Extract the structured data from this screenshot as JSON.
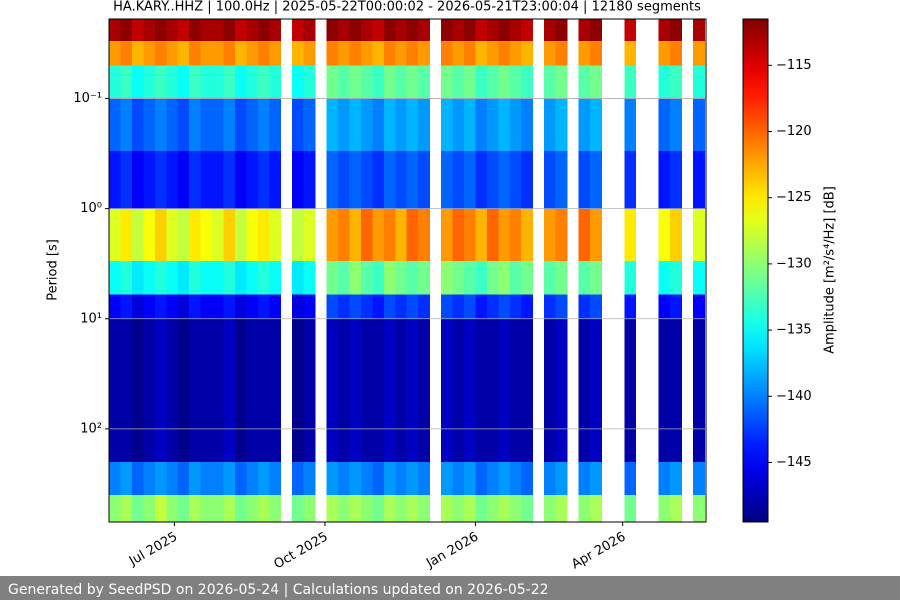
{
  "chart_data": {
    "type": "heatmap",
    "title": "HA.KARY..HHZ | 100.0Hz | 2025-05-22T00:00:02 - 2026-05-21T23:00:04 | 12180 segments",
    "ylabel": "Period [s]",
    "yscale": "log",
    "y_inverted": true,
    "grid": true,
    "xlim": [
      "2025-05-22T00:00:02",
      "2026-05-21T23:00:04"
    ],
    "xticks": [
      {
        "value": "2025-07",
        "label": "Jul 2025"
      },
      {
        "value": "2025-10",
        "label": "Oct 2025"
      },
      {
        "value": "2026-01",
        "label": "Jan 2026"
      },
      {
        "value": "2026-04",
        "label": "Apr 2026"
      }
    ],
    "ylim": [
      0.019,
      700
    ],
    "yticks": [
      {
        "value": 0.1,
        "label": "10⁻¹"
      },
      {
        "value": 1,
        "label": "10⁰"
      },
      {
        "value": 10,
        "label": "10¹"
      },
      {
        "value": 100,
        "label": "10²"
      }
    ],
    "x": [
      "2025-05-22",
      "2025-05-29",
      "2025-06-05",
      "2025-06-12",
      "2025-06-19",
      "2025-06-26",
      "2025-07-03",
      "2025-07-10",
      "2025-07-17",
      "2025-07-24",
      "2025-07-31",
      "2025-08-07",
      "2025-08-14",
      "2025-08-21",
      "2025-08-28",
      "2025-09-04",
      "2025-09-11",
      "2025-09-18",
      "2025-09-25",
      "2025-10-02",
      "2025-10-09",
      "2025-10-16",
      "2025-10-23",
      "2025-10-30",
      "2025-11-06",
      "2025-11-13",
      "2025-11-20",
      "2025-11-27",
      "2025-12-04",
      "2025-12-11",
      "2025-12-18",
      "2025-12-25",
      "2026-01-01",
      "2026-01-08",
      "2026-01-15",
      "2026-01-22",
      "2026-01-29",
      "2026-02-05",
      "2026-02-12",
      "2026-02-19",
      "2026-02-26",
      "2026-03-05",
      "2026-03-12",
      "2026-03-19",
      "2026-03-26",
      "2026-04-02",
      "2026-04-09",
      "2026-04-16",
      "2026-04-23",
      "2026-04-30",
      "2026-05-07",
      "2026-05-14",
      "2026-05-21"
    ],
    "periods": [
      0.019,
      0.03,
      0.05,
      0.1,
      0.3,
      1,
      3,
      6,
      10,
      200,
      400,
      700
    ],
    "values": [
      [
        -113,
        -112,
        -114,
        -113,
        -112,
        -113,
        -114,
        -112,
        -113,
        -113,
        -112,
        -114,
        -113,
        -112,
        -113,
        null,
        -114,
        -113,
        null,
        -112,
        -113,
        -112,
        -113,
        -114,
        -112,
        -113,
        -112,
        -113,
        null,
        -112,
        -113,
        -112,
        -114,
        -113,
        -112,
        -113,
        -114,
        null,
        -113,
        -112,
        null,
        -113,
        -112,
        null,
        null,
        -114,
        null,
        null,
        -113,
        -112,
        null,
        -113
      ],
      [
        -122,
        -121,
        -123,
        -122,
        -121,
        -122,
        -123,
        -121,
        -122,
        -122,
        -121,
        -123,
        -122,
        -121,
        -122,
        null,
        -123,
        -122,
        null,
        -121,
        -122,
        -121,
        -122,
        -123,
        -121,
        -122,
        -121,
        -122,
        null,
        -121,
        -122,
        -121,
        -123,
        -122,
        -121,
        -122,
        -123,
        null,
        -122,
        -121,
        null,
        -122,
        -121,
        null,
        null,
        -123,
        null,
        null,
        -122,
        -121,
        null,
        -122
      ],
      [
        -134,
        -133,
        -135,
        -134,
        -133,
        -134,
        -135,
        -133,
        -134,
        -134,
        -133,
        -135,
        -134,
        -133,
        -134,
        null,
        -135,
        -134,
        null,
        -131,
        -132,
        -131,
        -132,
        -133,
        -131,
        -132,
        -131,
        -132,
        null,
        -131,
        -132,
        -131,
        -133,
        -132,
        -131,
        -132,
        -133,
        null,
        -132,
        -131,
        null,
        -132,
        -131,
        null,
        null,
        -133,
        null,
        null,
        -134,
        -133,
        null,
        -134
      ],
      [
        -141,
        -140,
        -142,
        -141,
        -140,
        -141,
        -142,
        -140,
        -141,
        -141,
        -140,
        -142,
        -141,
        -140,
        -141,
        null,
        -142,
        -141,
        null,
        -138,
        -139,
        -138,
        -139,
        -140,
        -138,
        -139,
        -138,
        -139,
        null,
        -138,
        -139,
        -138,
        -140,
        -139,
        -138,
        -139,
        -140,
        null,
        -139,
        -138,
        null,
        -139,
        -138,
        null,
        null,
        -140,
        null,
        null,
        -141,
        -140,
        null,
        -141
      ],
      [
        -144,
        -143,
        -145,
        -144,
        -143,
        -144,
        -145,
        -143,
        -144,
        -144,
        -143,
        -145,
        -144,
        -143,
        -144,
        null,
        -145,
        -144,
        null,
        -141,
        -142,
        -141,
        -142,
        -143,
        -141,
        -142,
        -141,
        -142,
        null,
        -141,
        -142,
        -141,
        -143,
        -142,
        -141,
        -142,
        -143,
        null,
        -142,
        -141,
        null,
        -142,
        -141,
        null,
        null,
        -143,
        null,
        null,
        -144,
        -143,
        null,
        -144
      ],
      [
        -127,
        -125,
        -128,
        -126,
        -124,
        -127,
        -128,
        -125,
        -126,
        -127,
        -124,
        -128,
        -126,
        -125,
        -127,
        null,
        -128,
        -127,
        null,
        -122,
        -121,
        -123,
        -120,
        -122,
        -121,
        -123,
        -120,
        -121,
        null,
        -122,
        -120,
        -121,
        -123,
        -120,
        -122,
        -121,
        -123,
        null,
        -122,
        -121,
        null,
        -120,
        -122,
        null,
        null,
        -125,
        null,
        null,
        -126,
        -124,
        null,
        -127
      ],
      [
        -135,
        -134,
        -136,
        -135,
        -134,
        -135,
        -136,
        -134,
        -135,
        -135,
        -134,
        -136,
        -135,
        -134,
        -135,
        null,
        -136,
        -135,
        null,
        -131,
        -132,
        -130,
        -132,
        -133,
        -130,
        -131,
        -132,
        -131,
        null,
        -130,
        -131,
        -132,
        -133,
        -131,
        -130,
        -132,
        -131,
        null,
        -132,
        -131,
        null,
        -132,
        -131,
        null,
        null,
        -134,
        null,
        null,
        -135,
        -134,
        null,
        -135
      ],
      [
        -145,
        -144,
        -146,
        -145,
        -144,
        -145,
        -146,
        -144,
        -145,
        -145,
        -144,
        -146,
        -145,
        -144,
        -145,
        null,
        -146,
        -145,
        null,
        -142,
        -143,
        -142,
        -143,
        -144,
        -142,
        -143,
        -142,
        -143,
        null,
        -142,
        -143,
        -142,
        -144,
        -143,
        -142,
        -143,
        -144,
        null,
        -143,
        -142,
        null,
        -143,
        -142,
        null,
        null,
        -144,
        null,
        null,
        -145,
        -144,
        null,
        -145
      ],
      [
        -148,
        -148,
        -149,
        -148,
        -147,
        -148,
        -149,
        -148,
        -148,
        -148,
        -147,
        -149,
        -148,
        -148,
        -148,
        null,
        -149,
        -148,
        null,
        -147,
        -148,
        -147,
        -148,
        -148,
        -147,
        -148,
        -147,
        -148,
        null,
        -147,
        -148,
        -147,
        -148,
        -148,
        -147,
        -148,
        -148,
        null,
        -148,
        -147,
        null,
        -148,
        -147,
        null,
        null,
        -148,
        null,
        null,
        -148,
        -148,
        null,
        -148
      ],
      [
        -140,
        -139,
        -141,
        -140,
        -139,
        -140,
        -141,
        -139,
        -140,
        -140,
        -139,
        -141,
        -140,
        -139,
        -140,
        null,
        -141,
        -140,
        null,
        -139,
        -140,
        -139,
        -140,
        -141,
        -139,
        -140,
        -139,
        -140,
        null,
        -139,
        -140,
        -139,
        -141,
        -140,
        -139,
        -140,
        -141,
        null,
        -140,
        -139,
        null,
        -140,
        -139,
        null,
        null,
        -141,
        null,
        null,
        -140,
        -139,
        null,
        -140
      ],
      [
        -130,
        -129,
        -131,
        -130,
        -128,
        -130,
        -131,
        -129,
        -130,
        -130,
        -129,
        -131,
        -130,
        -129,
        -130,
        null,
        -131,
        -130,
        null,
        -129,
        -130,
        -129,
        -130,
        -131,
        -129,
        -130,
        -129,
        -130,
        null,
        -129,
        -130,
        -129,
        -131,
        -130,
        -129,
        -130,
        -131,
        null,
        -130,
        -129,
        null,
        -130,
        -129,
        null,
        null,
        -131,
        null,
        null,
        -130,
        -129,
        null,
        -130
      ]
    ],
    "colorbar": {
      "label": "Amplitude [m²/s⁴/Hz] [dB]",
      "colormap": "jet",
      "lim": [
        -149.5,
        -111.5
      ],
      "ticks": [
        {
          "value": -145,
          "label": "−145"
        },
        {
          "value": -140,
          "label": "−140"
        },
        {
          "value": -135,
          "label": "−135"
        },
        {
          "value": -130,
          "label": "−130"
        },
        {
          "value": -125,
          "label": "−125"
        },
        {
          "value": -120,
          "label": "−120"
        },
        {
          "value": -115,
          "label": "−115"
        }
      ]
    }
  },
  "footer": "Generated by SeedPSD on 2026-05-24 | Calculations updated on 2026-05-22"
}
